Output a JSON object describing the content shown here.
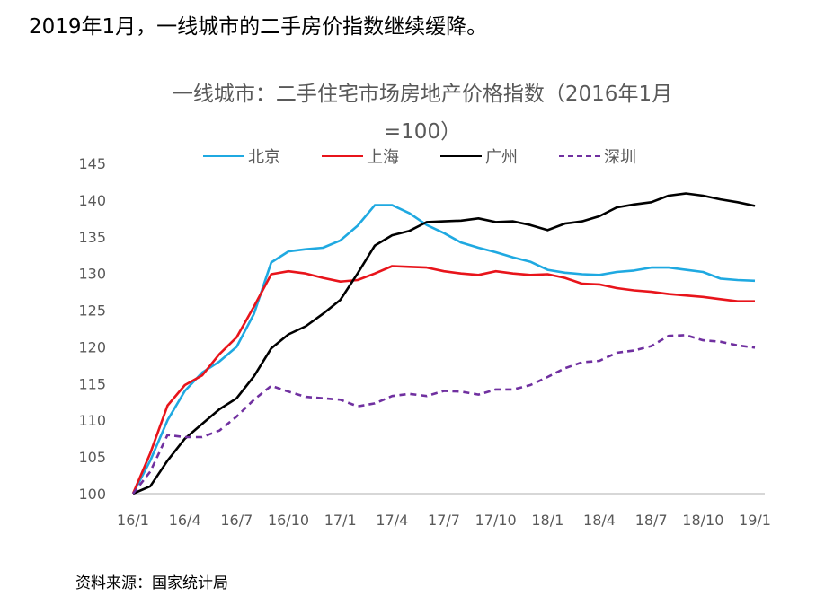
{
  "headline": "2019年1月，一线城市的二手房价指数继续缓降。",
  "source": "资料来源：国家统计局",
  "chart_data": {
    "type": "line",
    "title_line1": "一线城市：二手住宅市场房地产价格指数（2016年1月",
    "title_line2": "=100）",
    "ylim": [
      100,
      145
    ],
    "yticks": [
      "100",
      "105",
      "110",
      "115",
      "120",
      "125",
      "130",
      "135",
      "140",
      "145"
    ],
    "xtick_labels": [
      "16/1",
      "16/4",
      "16/7",
      "16/10",
      "17/1",
      "17/4",
      "17/7",
      "17/10",
      "18/1",
      "18/4",
      "18/7",
      "18/10",
      "19/1"
    ],
    "x": [
      "16/1",
      "16/2",
      "16/3",
      "16/4",
      "16/5",
      "16/6",
      "16/7",
      "16/8",
      "16/9",
      "16/10",
      "16/11",
      "16/12",
      "17/1",
      "17/2",
      "17/3",
      "17/4",
      "17/5",
      "17/6",
      "17/7",
      "17/8",
      "17/9",
      "17/10",
      "17/11",
      "17/12",
      "18/1",
      "18/2",
      "18/3",
      "18/4",
      "18/5",
      "18/6",
      "18/7",
      "18/8",
      "18/9",
      "18/10",
      "18/11",
      "18/12",
      "19/1"
    ],
    "grid": false,
    "legend_position": "top",
    "series": [
      {
        "name": "北京",
        "color": "#1FA9E1",
        "dash": "solid",
        "values": [
          100,
          104.5,
          110,
          114,
          116.5,
          118,
          120,
          124.5,
          131.5,
          133,
          133.3,
          133.5,
          134.5,
          136.5,
          139.3,
          139.3,
          138.2,
          136.6,
          135.5,
          134.2,
          133.5,
          132.9,
          132.2,
          131.6,
          130.5,
          130.1,
          129.9,
          129.8,
          130.2,
          130.4,
          130.8,
          130.8,
          130.5,
          130.2,
          129.3,
          129.1,
          129.0
        ]
      },
      {
        "name": "上海",
        "color": "#E8141B",
        "dash": "solid",
        "values": [
          100,
          105.5,
          112,
          114.8,
          116.1,
          119,
          121.3,
          125.5,
          129.9,
          130.3,
          130.0,
          129.4,
          128.9,
          129.1,
          130.0,
          131.0,
          130.9,
          130.8,
          130.3,
          130.0,
          129.8,
          130.3,
          130.0,
          129.8,
          129.9,
          129.4,
          128.6,
          128.5,
          128.0,
          127.7,
          127.5,
          127.2,
          127.0,
          126.8,
          126.5,
          126.2,
          126.2
        ]
      },
      {
        "name": "广州",
        "color": "#000000",
        "dash": "solid",
        "values": [
          100,
          101,
          104.5,
          107.5,
          109.5,
          111.5,
          113,
          116,
          119.8,
          121.7,
          122.8,
          124.5,
          126.4,
          130,
          133.8,
          135.2,
          135.8,
          137.0,
          137.1,
          137.2,
          137.5,
          137.0,
          137.1,
          136.6,
          135.9,
          136.8,
          137.1,
          137.8,
          139.0,
          139.4,
          139.7,
          140.6,
          140.9,
          140.6,
          140.1,
          139.7,
          139.2
        ]
      },
      {
        "name": "深圳",
        "color": "#7030A0",
        "dash": "dashed",
        "values": [
          100,
          103,
          108,
          107.7,
          107.7,
          108.6,
          110.5,
          112.8,
          114.7,
          113.9,
          113.2,
          113.0,
          112.8,
          111.9,
          112.3,
          113.3,
          113.6,
          113.3,
          114.0,
          113.9,
          113.5,
          114.2,
          114.2,
          114.8,
          115.9,
          117.1,
          117.9,
          118.1,
          119.2,
          119.5,
          120.1,
          121.5,
          121.6,
          120.9,
          120.7,
          120.2,
          119.9
        ]
      }
    ]
  }
}
